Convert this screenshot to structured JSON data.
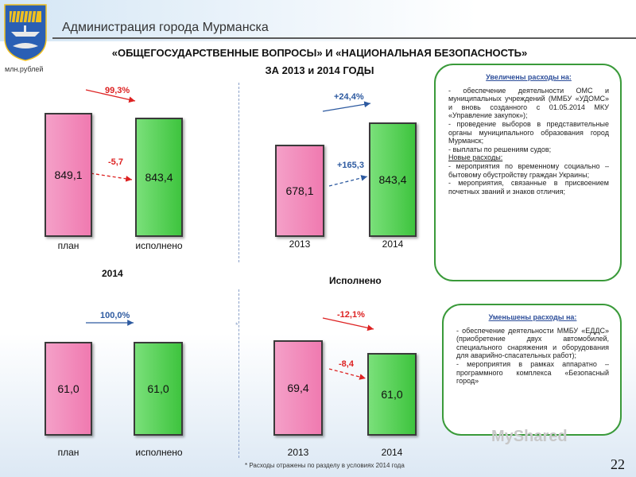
{
  "header": {
    "admin_title": "Администрация города Мурманска",
    "unit": "млн.рублей"
  },
  "title": {
    "line1": "«ОБЩЕГОСУДАРСТВЕННЫЕ ВОПРОСЫ» И «НАЦИОНАЛЬНАЯ БЕЗОПАСНОСТЬ»",
    "line2": "ЗА 2013 и 2014 ГОДЫ"
  },
  "sections": {
    "plan_year": "2014",
    "executed": "Исполнено"
  },
  "colors": {
    "plan": "#f07ab0",
    "executed": "#3ec43e",
    "increase": "#2d5aa0",
    "decrease": "#d22222",
    "box_border": "#3a9a3a"
  },
  "chart_data": [
    {
      "type": "bar",
      "categories": [
        "план",
        "исполнено"
      ],
      "values": [
        849.1,
        843.4
      ],
      "value_labels": [
        "849,1",
        "843,4"
      ],
      "annotations": [
        {
          "text": "99,3%"
        },
        {
          "text": "-5,7"
        }
      ]
    },
    {
      "type": "bar",
      "categories": [
        "2013",
        "2014"
      ],
      "values": [
        678.1,
        843.4
      ],
      "value_labels": [
        "678,1",
        "843,4"
      ],
      "annotations": [
        {
          "text": "+24,4%"
        },
        {
          "text": "+165,3"
        }
      ]
    },
    {
      "type": "bar",
      "categories": [
        "план",
        "исполнено"
      ],
      "values": [
        61.0,
        61.0
      ],
      "value_labels": [
        "61,0",
        "61,0"
      ],
      "annotations": [
        {
          "text": "100,0%"
        }
      ]
    },
    {
      "type": "bar",
      "categories": [
        "2013",
        "2014"
      ],
      "values": [
        69.4,
        61.0
      ],
      "value_labels": [
        "69,4",
        "61,0"
      ],
      "annotations": [
        {
          "text": "-12,1%"
        },
        {
          "text": "-8,4"
        }
      ]
    }
  ],
  "increased_box": {
    "heading": "Увеличены расходы на:",
    "lines": [
      {
        "text": "- обеспечение деятельности ОМС и муниципальных учреждений (ММБУ «УДОМС» и вновь созданного с 01.05.2014 МКУ «Управление закупок»);",
        "underline": false
      },
      {
        "text": "- проведение выборов в представительные органы муниципального образования город Мурманск;",
        "underline": false
      },
      {
        "text": "- выплаты по решениям судов;",
        "underline": false
      },
      {
        "text": "Новые расходы:",
        "underline": true
      },
      {
        "text": "- мероприятия по временному социально – бытовому обустройству граждан Украины;",
        "underline": false
      },
      {
        "text": "- мероприятия, связанные в присвоением почетных званий и знаков отличия;",
        "underline": false
      }
    ]
  },
  "decreased_box": {
    "heading": "Уменьшены расходы на:",
    "lines": [
      {
        "text": "- обеспечение деятельности ММБУ «ЕДДС» (приобретение двух автомобилей, специального снаряжения и оборудования для аварийно-спасательных работ);",
        "underline": false
      },
      {
        "text": "- мероприятия в рамках аппаратно – программного комплекса «Безопасный город»",
        "underline": false
      }
    ]
  },
  "footnote": "* Расходы отражены по разделу в условиях 2014 года",
  "page_number": "22",
  "watermark": "MyShared"
}
